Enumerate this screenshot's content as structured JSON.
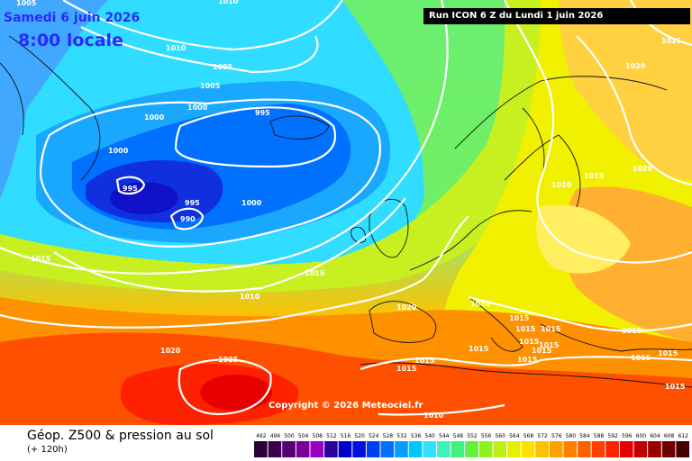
{
  "header": {
    "date": "Samedi 6 juin 2026",
    "time": "8:00 locale",
    "run": "Run ICON 6 Z du Lundi 1 juin 2026",
    "top_clip_label": "1005",
    "top_clip_label2": "1010"
  },
  "copyright": "Copyright © 2026 Meteociel.fr",
  "footer": {
    "title": "Géop. Z500 & pression au sol",
    "subtitle": "(+ 120h)"
  },
  "scale": {
    "labels": [
      "492",
      "496",
      "500",
      "504",
      "508",
      "512",
      "516",
      "520",
      "524",
      "528",
      "532",
      "536",
      "540",
      "544",
      "548",
      "552",
      "556",
      "560",
      "564",
      "568",
      "572",
      "576",
      "580",
      "584",
      "588",
      "592",
      "596",
      "600",
      "604",
      "608",
      "612"
    ],
    "colors": [
      "#2a003a",
      "#3d0050",
      "#560070",
      "#7a009a",
      "#9a00c0",
      "#2a00a0",
      "#0000c8",
      "#0010e0",
      "#0040f0",
      "#0070ff",
      "#00a0ff",
      "#00c8ff",
      "#30e0ff",
      "#40f0c0",
      "#40f080",
      "#60f040",
      "#90f020",
      "#c0f010",
      "#e8f000",
      "#ffe000",
      "#ffc000",
      "#ffa000",
      "#ff8000",
      "#ff6000",
      "#ff4000",
      "#ff2000",
      "#e80000",
      "#c00000",
      "#980000",
      "#700000",
      "#480000"
    ]
  },
  "isobar_labels": [
    {
      "name": "isobar-1010-greenland",
      "text": "1010"
    },
    {
      "name": "isobar-1005-a",
      "text": "1005"
    },
    {
      "name": "isobar-1005-b",
      "text": "1005"
    },
    {
      "name": "isobar-1000-a",
      "text": "1000"
    },
    {
      "name": "isobar-1000-b",
      "text": "1000"
    },
    {
      "name": "isobar-1000-c",
      "text": "1000"
    },
    {
      "name": "isobar-995-iceland",
      "text": "995"
    },
    {
      "name": "isobar-995-low",
      "text": "995"
    },
    {
      "name": "isobar-995-c",
      "text": "995"
    },
    {
      "name": "isobar-990",
      "text": "990"
    },
    {
      "name": "isobar-1000-d",
      "text": "1000"
    },
    {
      "name": "isobar-1015-west",
      "text": "1015"
    },
    {
      "name": "isobar-1015-mid",
      "text": "1015"
    },
    {
      "name": "isobar-1010-mid",
      "text": "1010"
    },
    {
      "name": "isobar-1020-west",
      "text": "1020"
    },
    {
      "name": "isobar-1025-azores",
      "text": "1025"
    },
    {
      "name": "isobar-1020-iberia",
      "text": "1020"
    },
    {
      "name": "isobar-1010-france",
      "text": "1010"
    },
    {
      "name": "isobar-1015-italy-a",
      "text": "1015"
    },
    {
      "name": "isobar-1015-italy-b",
      "text": "1015"
    },
    {
      "name": "isobar-1015-italy-c",
      "text": "1015"
    },
    {
      "name": "isobar-1015-italy-d",
      "text": "1015"
    },
    {
      "name": "isobar-1015-italy-e",
      "text": "1015"
    },
    {
      "name": "isobar-1015-med-a",
      "text": "1015"
    },
    {
      "name": "isobar-1015-med-b",
      "text": "1015"
    },
    {
      "name": "isobar-1015-greece",
      "text": "1015"
    },
    {
      "name": "isobar-1015-balkan-a",
      "text": "1015"
    },
    {
      "name": "isobar-1015-balkan-b",
      "text": "1015"
    },
    {
      "name": "isobar-1015-east",
      "text": "1015"
    },
    {
      "name": "isobar-1015-turkey",
      "text": "1015"
    },
    {
      "name": "isobar-1015-se",
      "text": "1015"
    },
    {
      "name": "isobar-1015-se2",
      "text": "1015"
    },
    {
      "name": "isobar-1010-south",
      "text": "1010"
    },
    {
      "name": "isobar-1010-scand",
      "text": "1010"
    },
    {
      "name": "isobar-1015-scand",
      "text": "1015"
    },
    {
      "name": "isobar-1020-russia",
      "text": "1020"
    },
    {
      "name": "isobar-1020-north",
      "text": "1020"
    },
    {
      "name": "isobar-1025-ne",
      "text": "1025"
    }
  ]
}
